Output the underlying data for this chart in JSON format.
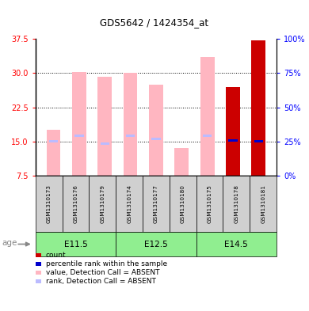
{
  "title": "GDS5642 / 1424354_at",
  "samples": [
    "GSM1310173",
    "GSM1310176",
    "GSM1310179",
    "GSM1310174",
    "GSM1310177",
    "GSM1310180",
    "GSM1310175",
    "GSM1310178",
    "GSM1310181"
  ],
  "age_groups": [
    {
      "label": "E11.5",
      "start": 0,
      "end": 3
    },
    {
      "label": "E12.5",
      "start": 3,
      "end": 6
    },
    {
      "label": "E14.5",
      "start": 6,
      "end": 9
    }
  ],
  "value_absent": [
    17.5,
    30.2,
    29.2,
    30.0,
    27.5,
    13.5,
    33.5,
    null,
    null
  ],
  "rank_absent": [
    15.0,
    16.2,
    14.5,
    16.2,
    15.5,
    null,
    16.2,
    null,
    null
  ],
  "value_count": [
    null,
    null,
    null,
    null,
    null,
    null,
    null,
    27.0,
    37.2
  ],
  "rank_count": [
    null,
    null,
    null,
    null,
    null,
    null,
    null,
    15.2,
    15.0
  ],
  "ylim_left": [
    7.5,
    37.5
  ],
  "ylim_right": [
    0,
    100
  ],
  "yticks_left": [
    7.5,
    15.0,
    22.5,
    30.0,
    37.5
  ],
  "yticks_right": [
    0,
    25,
    50,
    75,
    100
  ],
  "color_value_absent": "#FFB6C1",
  "color_rank_absent": "#BBBBFF",
  "color_count": "#CC0000",
  "color_rank_count": "#0000CC",
  "bar_bottom": 7.5,
  "bar_width": 0.55,
  "rank_bar_width": 0.35,
  "rank_bar_height": 0.5,
  "legend_items": [
    {
      "color": "#CC0000",
      "label": "count"
    },
    {
      "color": "#0000CC",
      "label": "percentile rank within the sample"
    },
    {
      "color": "#FFB6C1",
      "label": "value, Detection Call = ABSENT"
    },
    {
      "color": "#BBBBFF",
      "label": "rank, Detection Call = ABSENT"
    }
  ]
}
